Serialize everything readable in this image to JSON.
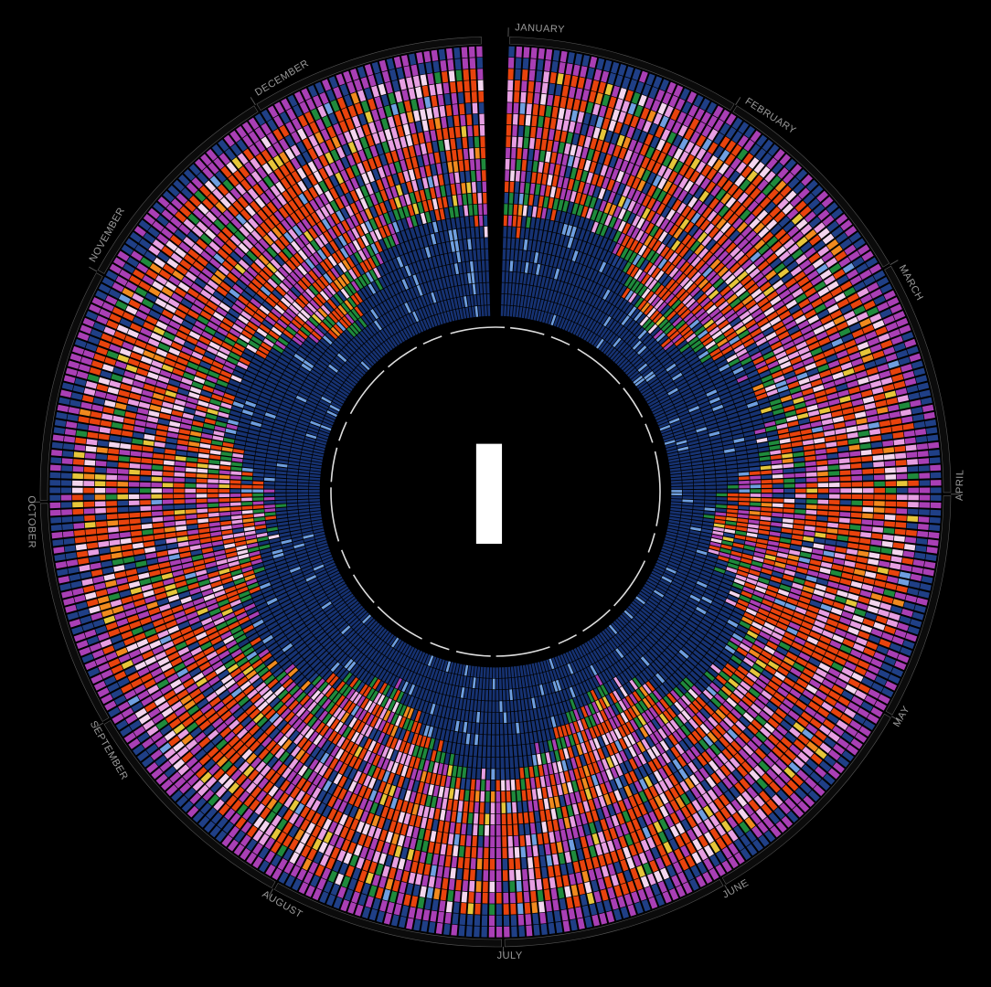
{
  "chart_data": {
    "type": "heatmap",
    "layout": "radial",
    "title": "",
    "center_glyph": "I",
    "months": [
      "JANUARY",
      "FEBRUARY",
      "MARCH",
      "APRIL",
      "MAY",
      "JUNE",
      "JULY",
      "AUGUST",
      "SEPTEMBER",
      "OCTOBER",
      "NOVEMBER",
      "DECEMBER"
    ],
    "days_per_month": [
      31,
      29,
      31,
      30,
      31,
      30,
      31,
      31,
      30,
      31,
      30,
      31
    ],
    "rows_per_day": 24,
    "start_angle_deg": 0,
    "direction": "clockwise",
    "colors": {
      "background": "#000000",
      "ring_blue": "#1f3f86",
      "deep_blue": "#163272",
      "light_blue": "#6f9fe0",
      "red_orange": "#e8430d",
      "magenta": "#a93fb5",
      "pink": "#e79fe2",
      "light_pink": "#f3d6ee",
      "green": "#1f8a3c",
      "yellow": "#e6c63a",
      "orange": "#f08a1e",
      "axis_line": "#555555",
      "label": "#9a9a9a",
      "inner_dash": "#dddddd"
    },
    "legend": []
  }
}
